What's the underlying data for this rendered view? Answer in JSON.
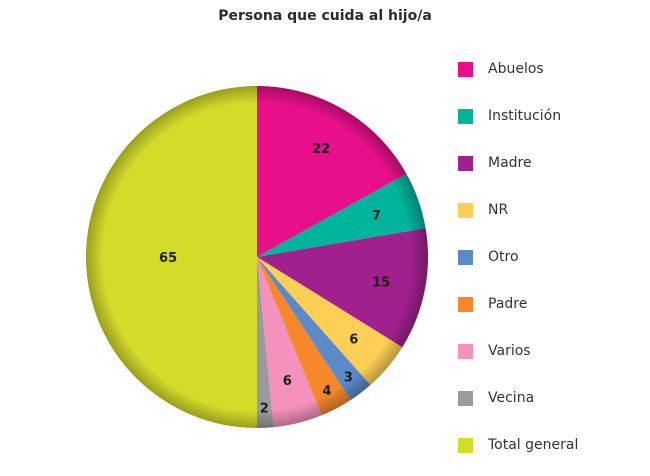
{
  "chart_data": {
    "type": "pie",
    "title": "Persona que cuida al hijo/a",
    "legend_position": "right",
    "slices": [
      {
        "label": "Abuelos",
        "value": 22,
        "color": "#e8108a"
      },
      {
        "label": "Institución",
        "value": 7,
        "color": "#00b39b"
      },
      {
        "label": "Madre",
        "value": 15,
        "color": "#a0218e"
      },
      {
        "label": "NR",
        "value": 6,
        "color": "#fdd055"
      },
      {
        "label": "Otro",
        "value": 3,
        "color": "#5b8ac9"
      },
      {
        "label": "Padre",
        "value": 4,
        "color": "#f6872a"
      },
      {
        "label": "Varios",
        "value": 6,
        "color": "#f491bc"
      },
      {
        "label": "Vecina",
        "value": 2,
        "color": "#9b9b9b"
      },
      {
        "label": "Total general",
        "value": 65,
        "color": "#d4dc2a"
      }
    ]
  }
}
